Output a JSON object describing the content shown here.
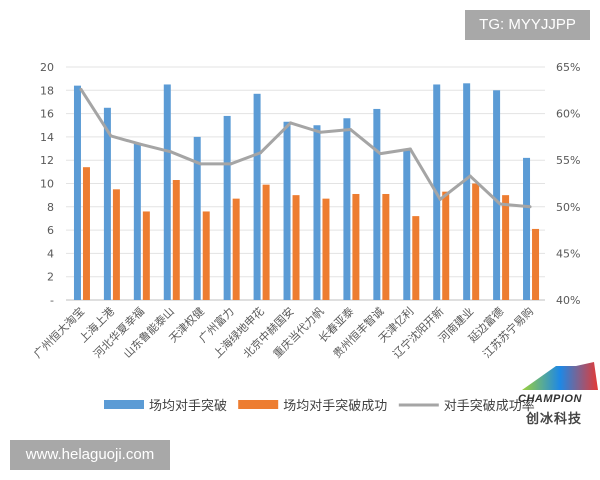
{
  "watermarks": {
    "top": "TG: MYYJJPP",
    "bottom": "www.helaguoji.com"
  },
  "logo": {
    "name": "CHAMPION",
    "cn": "创冰科技"
  },
  "chart_data": {
    "type": "bar",
    "categories": [
      "广州恒大淘宝",
      "上海上港",
      "河北华夏幸福",
      "山东鲁能泰山",
      "天津权健",
      "广州富力",
      "上海绿地申花",
      "北京中赫国安",
      "重庆当代力帆",
      "长春亚泰",
      "贵州恒丰智诚",
      "天津亿利",
      "辽宁沈阳开新",
      "河南建业",
      "延边富德",
      "江苏苏宁易购"
    ],
    "series": [
      {
        "name": "场均对手突破",
        "type": "bar",
        "axis": "left",
        "color": "#5b9bd5",
        "values": [
          18.4,
          16.5,
          13.4,
          18.5,
          14.0,
          15.8,
          17.7,
          15.3,
          15.0,
          15.6,
          16.4,
          13.0,
          18.5,
          18.6,
          18.0,
          12.2
        ]
      },
      {
        "name": "场均对手突破成功",
        "type": "bar",
        "axis": "left",
        "color": "#ed7d31",
        "values": [
          11.4,
          9.5,
          7.6,
          10.3,
          7.6,
          8.7,
          9.9,
          9.0,
          8.7,
          9.1,
          9.1,
          7.2,
          9.3,
          10.0,
          9.0,
          6.1
        ]
      },
      {
        "name": "对手突破成功率",
        "type": "line",
        "axis": "right",
        "color": "#a5a5a5",
        "values": [
          62.6,
          57.6,
          56.7,
          55.9,
          54.6,
          54.6,
          55.8,
          59.0,
          58.0,
          58.3,
          55.7,
          56.2,
          50.8,
          53.3,
          50.3,
          50.0
        ]
      }
    ],
    "y_left": {
      "ylim": [
        0,
        20
      ],
      "ticks": [
        "-",
        "2",
        "4",
        "6",
        "8",
        "10",
        "12",
        "14",
        "16",
        "18",
        "20"
      ]
    },
    "y_right": {
      "ylim": [
        40,
        65
      ],
      "ticks": [
        "40%",
        "45%",
        "50%",
        "55%",
        "60%",
        "65%"
      ]
    },
    "grid": true,
    "legend": "bottom"
  }
}
